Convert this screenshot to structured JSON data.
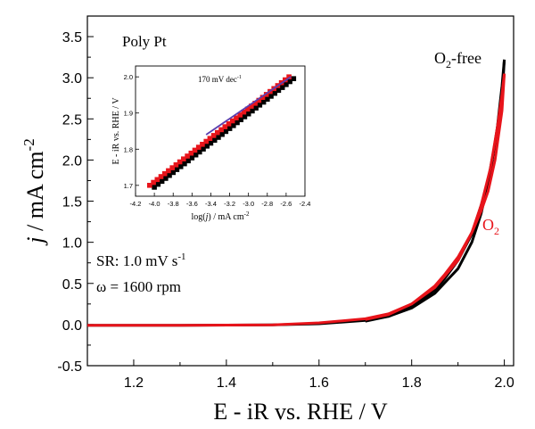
{
  "chart_data": {
    "type": "line",
    "title": "",
    "xlabel": "E - iR vs. RHE / V",
    "ylabel_main": "j",
    "ylabel_rest": " / mA cm",
    "ylabel_sup": "-2",
    "xlim": [
      1.1,
      2.02
    ],
    "ylim": [
      -0.5,
      3.75
    ],
    "xticks": [
      1.2,
      1.4,
      1.6,
      1.8,
      2.0
    ],
    "xtick_labels": [
      "1.2",
      "1.4",
      "1.6",
      "1.8",
      "2.0"
    ],
    "yticks": [
      -0.5,
      0.0,
      0.5,
      1.0,
      1.5,
      2.0,
      2.5,
      3.0,
      3.5
    ],
    "ytick_labels": [
      "-0.5",
      "0.0",
      "0.5",
      "1.0",
      "1.5",
      "2.0",
      "2.5",
      "3.0",
      "3.5"
    ],
    "annotations": {
      "sample": "Poly Pt",
      "sr_prefix": "SR: 1.0 mV s",
      "sr_sup": "-1",
      "rotation": "ω = 1600 rpm"
    },
    "series": [
      {
        "name": "O2-free",
        "label_main": "O",
        "label_sub": "2",
        "label_rest": "-free",
        "color": "#000000",
        "forward": [
          [
            1.1,
            -0.01
          ],
          [
            1.3,
            -0.01
          ],
          [
            1.5,
            -0.005
          ],
          [
            1.6,
            0.01
          ],
          [
            1.7,
            0.05
          ],
          [
            1.75,
            0.1
          ],
          [
            1.8,
            0.2
          ],
          [
            1.85,
            0.38
          ],
          [
            1.9,
            0.68
          ],
          [
            1.93,
            1.0
          ],
          [
            1.95,
            1.35
          ],
          [
            1.97,
            1.85
          ],
          [
            1.985,
            2.4
          ],
          [
            1.995,
            2.9
          ],
          [
            2.0,
            3.22
          ]
        ],
        "backward": [
          [
            2.0,
            3.22
          ],
          [
            1.995,
            2.75
          ],
          [
            1.98,
            2.2
          ],
          [
            1.965,
            1.75
          ],
          [
            1.95,
            1.45
          ],
          [
            1.93,
            1.1
          ],
          [
            1.9,
            0.78
          ],
          [
            1.87,
            0.55
          ],
          [
            1.85,
            0.42
          ],
          [
            1.8,
            0.22
          ],
          [
            1.75,
            0.1
          ],
          [
            1.7,
            0.04
          ]
        ]
      },
      {
        "name": "O2",
        "label_main": "O",
        "label_sub": "2",
        "label_rest": "",
        "color": "#e8141b",
        "forward": [
          [
            1.1,
            -0.01
          ],
          [
            1.3,
            -0.01
          ],
          [
            1.5,
            -0.005
          ],
          [
            1.6,
            0.02
          ],
          [
            1.7,
            0.07
          ],
          [
            1.75,
            0.13
          ],
          [
            1.8,
            0.25
          ],
          [
            1.85,
            0.45
          ],
          [
            1.9,
            0.78
          ],
          [
            1.93,
            1.12
          ],
          [
            1.95,
            1.45
          ],
          [
            1.97,
            1.9
          ],
          [
            1.985,
            2.4
          ],
          [
            1.995,
            2.8
          ],
          [
            2.0,
            3.05
          ]
        ],
        "backward": [
          [
            2.0,
            3.05
          ],
          [
            1.995,
            2.6
          ],
          [
            1.98,
            2.0
          ],
          [
            1.965,
            1.62
          ],
          [
            1.95,
            1.38
          ],
          [
            1.93,
            1.12
          ],
          [
            1.9,
            0.82
          ],
          [
            1.87,
            0.6
          ],
          [
            1.85,
            0.47
          ],
          [
            1.8,
            0.25
          ],
          [
            1.75,
            0.12
          ],
          [
            1.7,
            0.06
          ]
        ]
      }
    ],
    "inset": {
      "type": "scatter",
      "xlabel_prefix": "log(",
      "xlabel_var": "j",
      "xlabel_rest": ") / mA cm",
      "xlabel_sup": "-2",
      "ylabel": "E - iR vs. RHE / V",
      "xlim": [
        -4.2,
        -2.4
      ],
      "ylim": [
        1.67,
        2.03
      ],
      "xticks": [
        -4.2,
        -4.0,
        -3.8,
        -3.6,
        -3.4,
        -3.2,
        -3.0,
        -2.8,
        -2.6,
        -2.4
      ],
      "xtick_labels": [
        "-4.2",
        "-4.0",
        "-3.8",
        "-3.6",
        "-3.4",
        "-3.2",
        "-3.0",
        "-2.8",
        "-2.6",
        "-2.4"
      ],
      "yticks": [
        1.7,
        1.8,
        1.9,
        2.0
      ],
      "ytick_labels": [
        "1.7",
        "1.8",
        "1.9",
        "2.0"
      ],
      "slope_prefix": "170 mV dec",
      "slope_sup": "-1",
      "series": [
        {
          "name": "O2-free",
          "color": "#000000",
          "x_start": -4.0,
          "x_end": -2.52,
          "y_start": 1.695,
          "y_end": 1.995
        },
        {
          "name": "O2",
          "color": "#e8141b",
          "x_start": -4.05,
          "x_end": -2.57,
          "y_start": 1.7,
          "y_end": 2.0
        }
      ],
      "fit": {
        "color": "#5a3fb0",
        "x_start": -3.45,
        "x_end": -2.55,
        "y_start": 1.84,
        "y_end": 2.0
      }
    }
  }
}
